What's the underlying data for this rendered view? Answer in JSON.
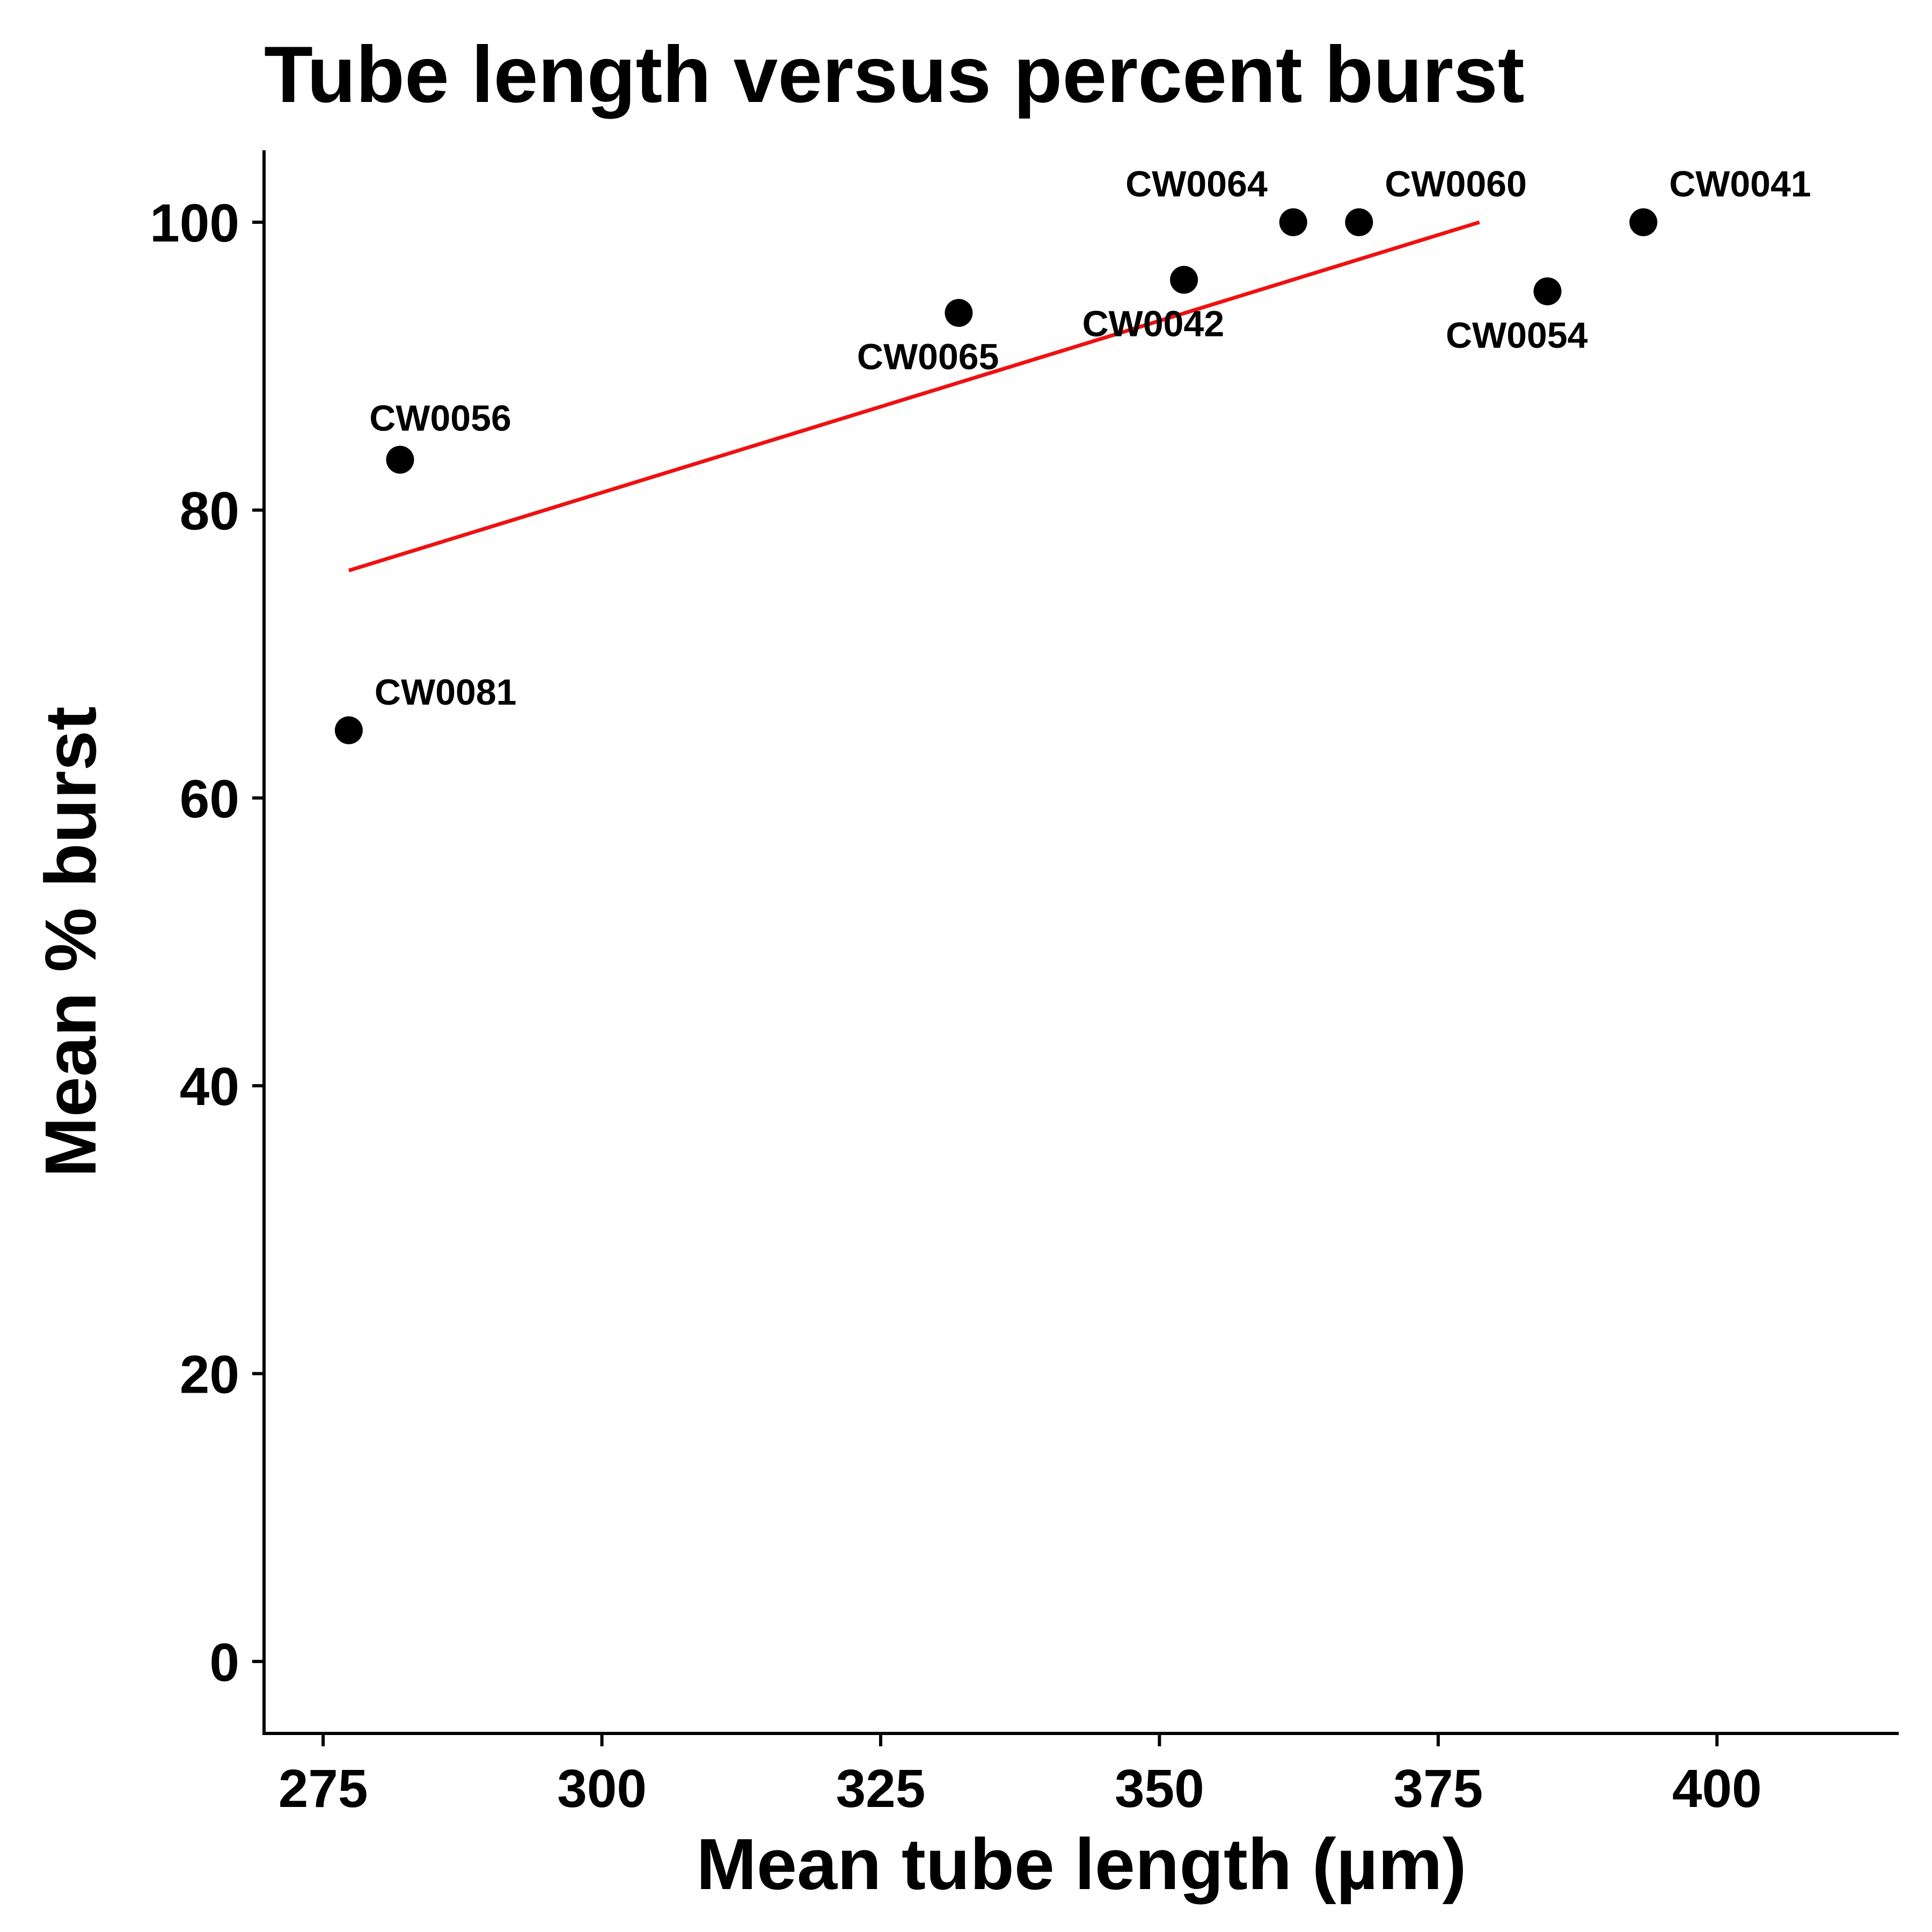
{
  "chart_data": {
    "type": "scatter",
    "title": "Tube length versus percent burst",
    "xlabel": "Mean tube length (µm)",
    "ylabel": "Mean % burst",
    "xlim": [
      269.7,
      416.3
    ],
    "ylim": [
      -5,
      105
    ],
    "xticks": [
      275,
      300,
      325,
      350,
      375,
      400
    ],
    "yticks": [
      0,
      20,
      40,
      60,
      80,
      100
    ],
    "grid": false,
    "legend": "none",
    "point_color": "#000000",
    "fit_color": "#ee1111",
    "points": [
      {
        "label": "CW0081",
        "x": 277.3,
        "y": 64.7,
        "label_pos": "upper-right"
      },
      {
        "label": "CW0056",
        "x": 281.9,
        "y": 83.5,
        "label_pos": "above"
      },
      {
        "label": "CW0065",
        "x": 332.0,
        "y": 93.7,
        "label_pos": "below-left"
      },
      {
        "label": "CW0042",
        "x": 352.2,
        "y": 96.0,
        "label_pos": "below-left"
      },
      {
        "label": "CW0064",
        "x": 362.0,
        "y": 100.0,
        "label_pos": "upper-left"
      },
      {
        "label": "CW0060",
        "x": 367.9,
        "y": 100.0,
        "label_pos": "upper-right"
      },
      {
        "label": "CW0054",
        "x": 384.8,
        "y": 95.2,
        "label_pos": "below-left"
      },
      {
        "label": "CW0041",
        "x": 393.4,
        "y": 100.0,
        "label_pos": "upper-right"
      }
    ],
    "fit_line": {
      "x": [
        277.3,
        378.7
      ],
      "y": [
        75.8,
        100.0
      ]
    }
  }
}
